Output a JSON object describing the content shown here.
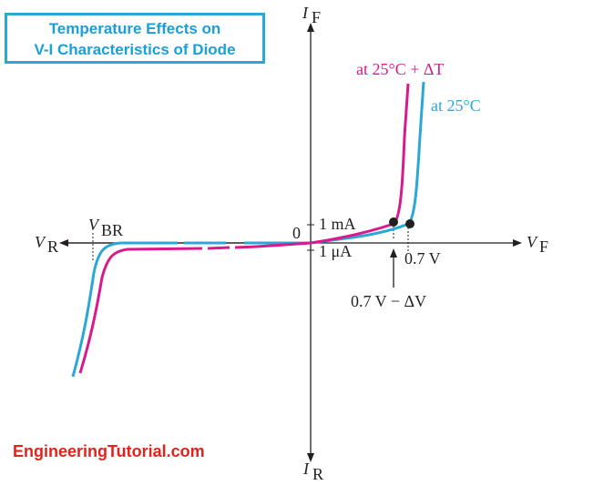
{
  "title": {
    "line1": "Temperature Effects on",
    "line2": "V-I Characteristics of Diode"
  },
  "axes": {
    "y_positive": "I",
    "y_positive_sub": "F",
    "y_negative": "I",
    "y_negative_sub": "R",
    "x_positive": "V",
    "x_positive_sub": "F",
    "x_negative": "V",
    "x_negative_sub": "R",
    "origin": "0"
  },
  "annotations": {
    "breakdown": "V",
    "breakdown_sub": "BR",
    "forward_current": "1 mA",
    "reverse_current": "1 μA",
    "knee_voltage": "0.7 V",
    "knee_shift": "0.7 V − ΔV"
  },
  "curves": {
    "hot_label": "at 25°C + ΔT",
    "hot_color": "#d81b8c",
    "normal_label": "at 25°C",
    "normal_color": "#29a8d8"
  },
  "watermark": "EngineeringTutorial.com"
}
